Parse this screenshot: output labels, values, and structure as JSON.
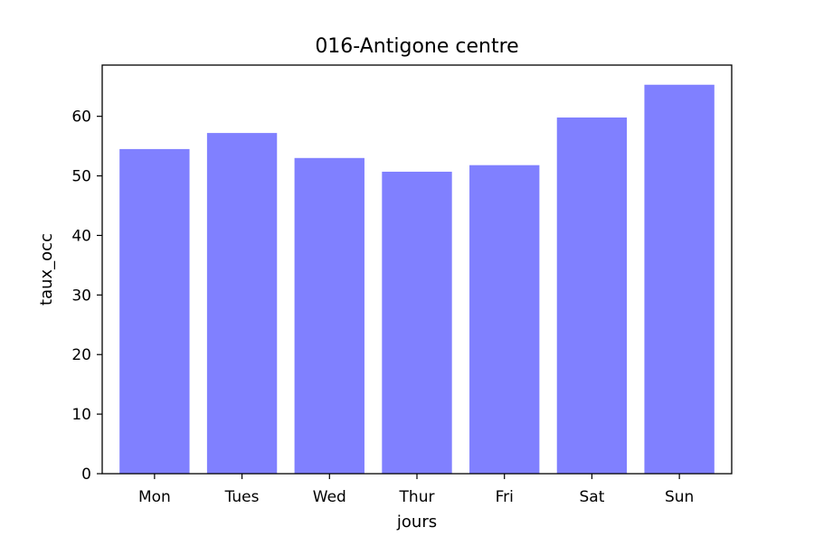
{
  "chart_data": {
    "type": "bar",
    "title": "016-Antigone centre",
    "xlabel": "jours",
    "ylabel": "taux_occ",
    "categories": [
      "Mon",
      "Tues",
      "Wed",
      "Thur",
      "Fri",
      "Sat",
      "Sun"
    ],
    "values": [
      54.5,
      57.2,
      53.0,
      50.7,
      51.8,
      59.8,
      65.3
    ],
    "ylim": [
      0,
      68.6
    ],
    "yticks": [
      0,
      10,
      20,
      30,
      40,
      50,
      60
    ],
    "ytick_labels": [
      "0",
      "10",
      "20",
      "30",
      "40",
      "50",
      "60"
    ],
    "grid": false,
    "legend": "none",
    "bar_color": "#8080ff",
    "axis_color": "#000000"
  }
}
